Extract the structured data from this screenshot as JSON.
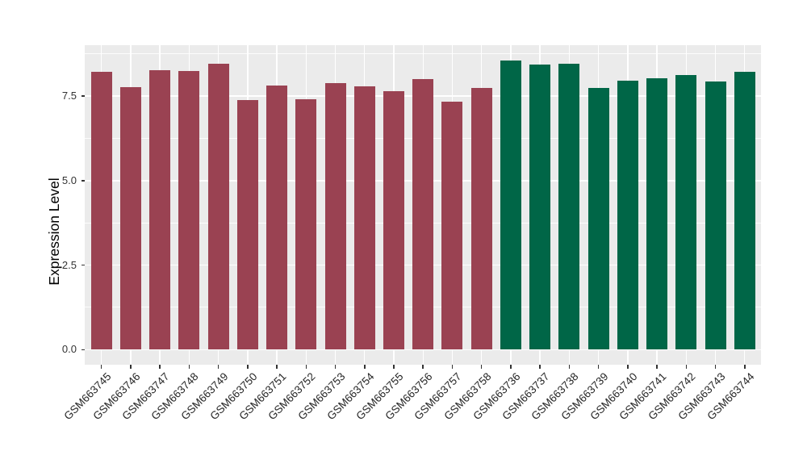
{
  "figure": {
    "background": "#FFFFFF",
    "panel_background": "#EBEBEB",
    "grid_color": "#FFFFFF",
    "axis_text_color": "#333333",
    "axis_title_color": "#000000",
    "bar_color_left_group": "#9A4252",
    "bar_color_right_group": "#006647"
  },
  "chart_data": {
    "type": "bar",
    "title": "",
    "xlabel": "",
    "ylabel": "Expression Level",
    "ylim": [
      0,
      9
    ],
    "grid": true,
    "legend_position": "none",
    "y_ticks": [
      {
        "label": "0.0",
        "value": 0.0
      },
      {
        "label": "2.5",
        "value": 2.5
      },
      {
        "label": "5.0",
        "value": 5.0
      },
      {
        "label": "7.5",
        "value": 7.5
      }
    ],
    "y_minor_values": [
      1.25,
      3.75,
      6.25,
      8.75
    ],
    "categories": [
      "GSM663745",
      "GSM663746",
      "GSM663747",
      "GSM663748",
      "GSM663749",
      "GSM663750",
      "GSM663751",
      "GSM663752",
      "GSM663753",
      "GSM663754",
      "GSM663755",
      "GSM663756",
      "GSM663757",
      "GSM663758",
      "GSM663736",
      "GSM663737",
      "GSM663738",
      "GSM663739",
      "GSM663740",
      "GSM663741",
      "GSM663742",
      "GSM663743",
      "GSM663744"
    ],
    "bars": [
      {
        "label": "GSM663745",
        "value": 8.22,
        "color": "#9A4252"
      },
      {
        "label": "GSM663746",
        "value": 7.77,
        "color": "#9A4252"
      },
      {
        "label": "GSM663747",
        "value": 8.26,
        "color": "#9A4252"
      },
      {
        "label": "GSM663748",
        "value": 8.25,
        "color": "#9A4252"
      },
      {
        "label": "GSM663749",
        "value": 8.45,
        "color": "#9A4252"
      },
      {
        "label": "GSM663750",
        "value": 7.39,
        "color": "#9A4252"
      },
      {
        "label": "GSM663751",
        "value": 7.82,
        "color": "#9A4252"
      },
      {
        "label": "GSM663752",
        "value": 7.4,
        "color": "#9A4252"
      },
      {
        "label": "GSM663753",
        "value": 7.89,
        "color": "#9A4252"
      },
      {
        "label": "GSM663754",
        "value": 7.78,
        "color": "#9A4252"
      },
      {
        "label": "GSM663755",
        "value": 7.65,
        "color": "#9A4252"
      },
      {
        "label": "GSM663756",
        "value": 8.0,
        "color": "#9A4252"
      },
      {
        "label": "GSM663757",
        "value": 7.33,
        "color": "#9A4252"
      },
      {
        "label": "GSM663758",
        "value": 7.75,
        "color": "#9A4252"
      },
      {
        "label": "GSM663736",
        "value": 8.54,
        "color": "#006647"
      },
      {
        "label": "GSM663737",
        "value": 8.44,
        "color": "#006647"
      },
      {
        "label": "GSM663738",
        "value": 8.46,
        "color": "#006647"
      },
      {
        "label": "GSM663739",
        "value": 7.73,
        "color": "#006647"
      },
      {
        "label": "GSM663740",
        "value": 7.95,
        "color": "#006647"
      },
      {
        "label": "GSM663741",
        "value": 8.03,
        "color": "#006647"
      },
      {
        "label": "GSM663742",
        "value": 8.11,
        "color": "#006647"
      },
      {
        "label": "GSM663743",
        "value": 7.93,
        "color": "#006647"
      },
      {
        "label": "GSM663744",
        "value": 8.22,
        "color": "#006647"
      }
    ]
  }
}
